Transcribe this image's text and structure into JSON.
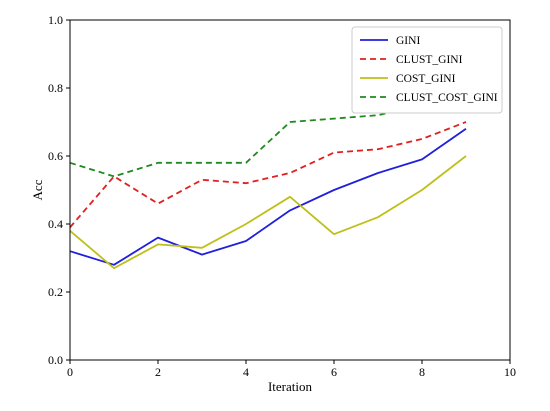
{
  "chart_data": {
    "type": "line",
    "xlabel": "Iteration",
    "ylabel": "Acc",
    "xlim": [
      0,
      10
    ],
    "ylim": [
      0.0,
      1.0
    ],
    "xticks": [
      "0",
      "2",
      "4",
      "6",
      "8",
      "10"
    ],
    "yticks": [
      "0.0",
      "0.2",
      "0.4",
      "0.6",
      "0.8",
      "1.0"
    ],
    "grid": false,
    "legend_position": "top-right",
    "x": [
      0,
      1,
      2,
      3,
      4,
      5,
      6,
      7,
      8,
      9
    ],
    "series": [
      {
        "name": "GINI",
        "color": "#1f1fdc",
        "dash": "solid",
        "values": [
          0.32,
          0.28,
          0.36,
          0.31,
          0.35,
          0.44,
          0.5,
          0.55,
          0.59,
          0.68
        ]
      },
      {
        "name": "CLUST_GINI",
        "color": "#e02020",
        "dash": "dashed",
        "values": [
          0.39,
          0.54,
          0.46,
          0.53,
          0.52,
          0.55,
          0.61,
          0.62,
          0.65,
          0.7
        ]
      },
      {
        "name": "COST_GINI",
        "color": "#bfbf1a",
        "dash": "solid",
        "values": [
          0.38,
          0.27,
          0.34,
          0.33,
          0.4,
          0.48,
          0.37,
          0.42,
          0.5,
          0.6
        ]
      },
      {
        "name": "CLUST_COST_GINI",
        "color": "#1f8a1f",
        "dash": "dashed",
        "values": [
          0.58,
          0.54,
          0.58,
          0.58,
          0.58,
          0.7,
          0.71,
          0.72,
          0.75,
          0.75
        ]
      }
    ]
  }
}
